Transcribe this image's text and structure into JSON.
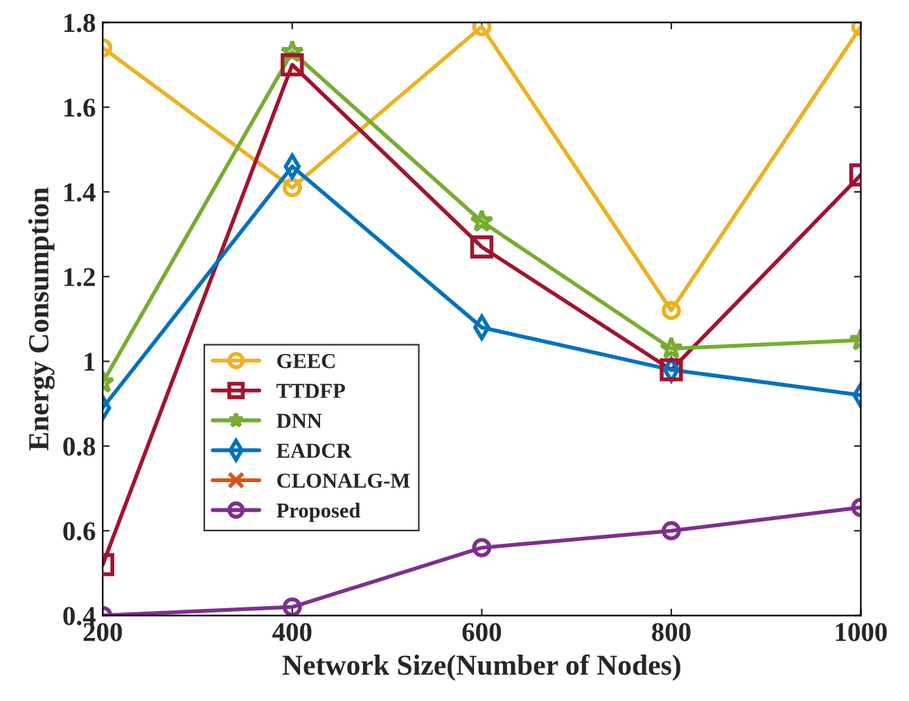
{
  "chart_data": {
    "type": "line",
    "xlabel": "Network Size(Number of Nodes)",
    "ylabel": "Energy Consumption",
    "x": [
      200,
      400,
      600,
      800,
      1000
    ],
    "series": [
      {
        "name": "GEEC",
        "color": "#edb120",
        "marker": "circle",
        "values": [
          1.74,
          1.41,
          1.79,
          1.12,
          1.79
        ]
      },
      {
        "name": "TTDFP",
        "color": "#a2142f",
        "marker": "square",
        "values": [
          0.52,
          1.7,
          1.27,
          0.98,
          1.44
        ]
      },
      {
        "name": "DNN",
        "color": "#77ac30",
        "marker": "star",
        "values": [
          0.95,
          1.73,
          1.33,
          1.03,
          1.05
        ]
      },
      {
        "name": "EADCR",
        "color": "#0072bd",
        "marker": "diamond",
        "values": [
          0.89,
          1.46,
          1.08,
          0.98,
          0.92
        ]
      },
      {
        "name": "CLONALG-M",
        "color": "#d95319",
        "marker": "cross",
        "values": [
          null,
          null,
          null,
          null,
          null
        ]
      },
      {
        "name": "Proposed",
        "color": "#7e2f8e",
        "marker": "circle",
        "values": [
          0.4,
          0.42,
          0.56,
          0.6,
          0.655
        ]
      }
    ],
    "xlim": [
      200,
      1000
    ],
    "xticks": [
      200,
      400,
      600,
      800,
      1000
    ],
    "ylim": [
      0.4,
      1.8
    ],
    "yticks": [
      0.4,
      0.6,
      0.8,
      1,
      1.2,
      1.4,
      1.6,
      1.8
    ],
    "grid": false,
    "legend": "left",
    "line_style": "solid"
  }
}
